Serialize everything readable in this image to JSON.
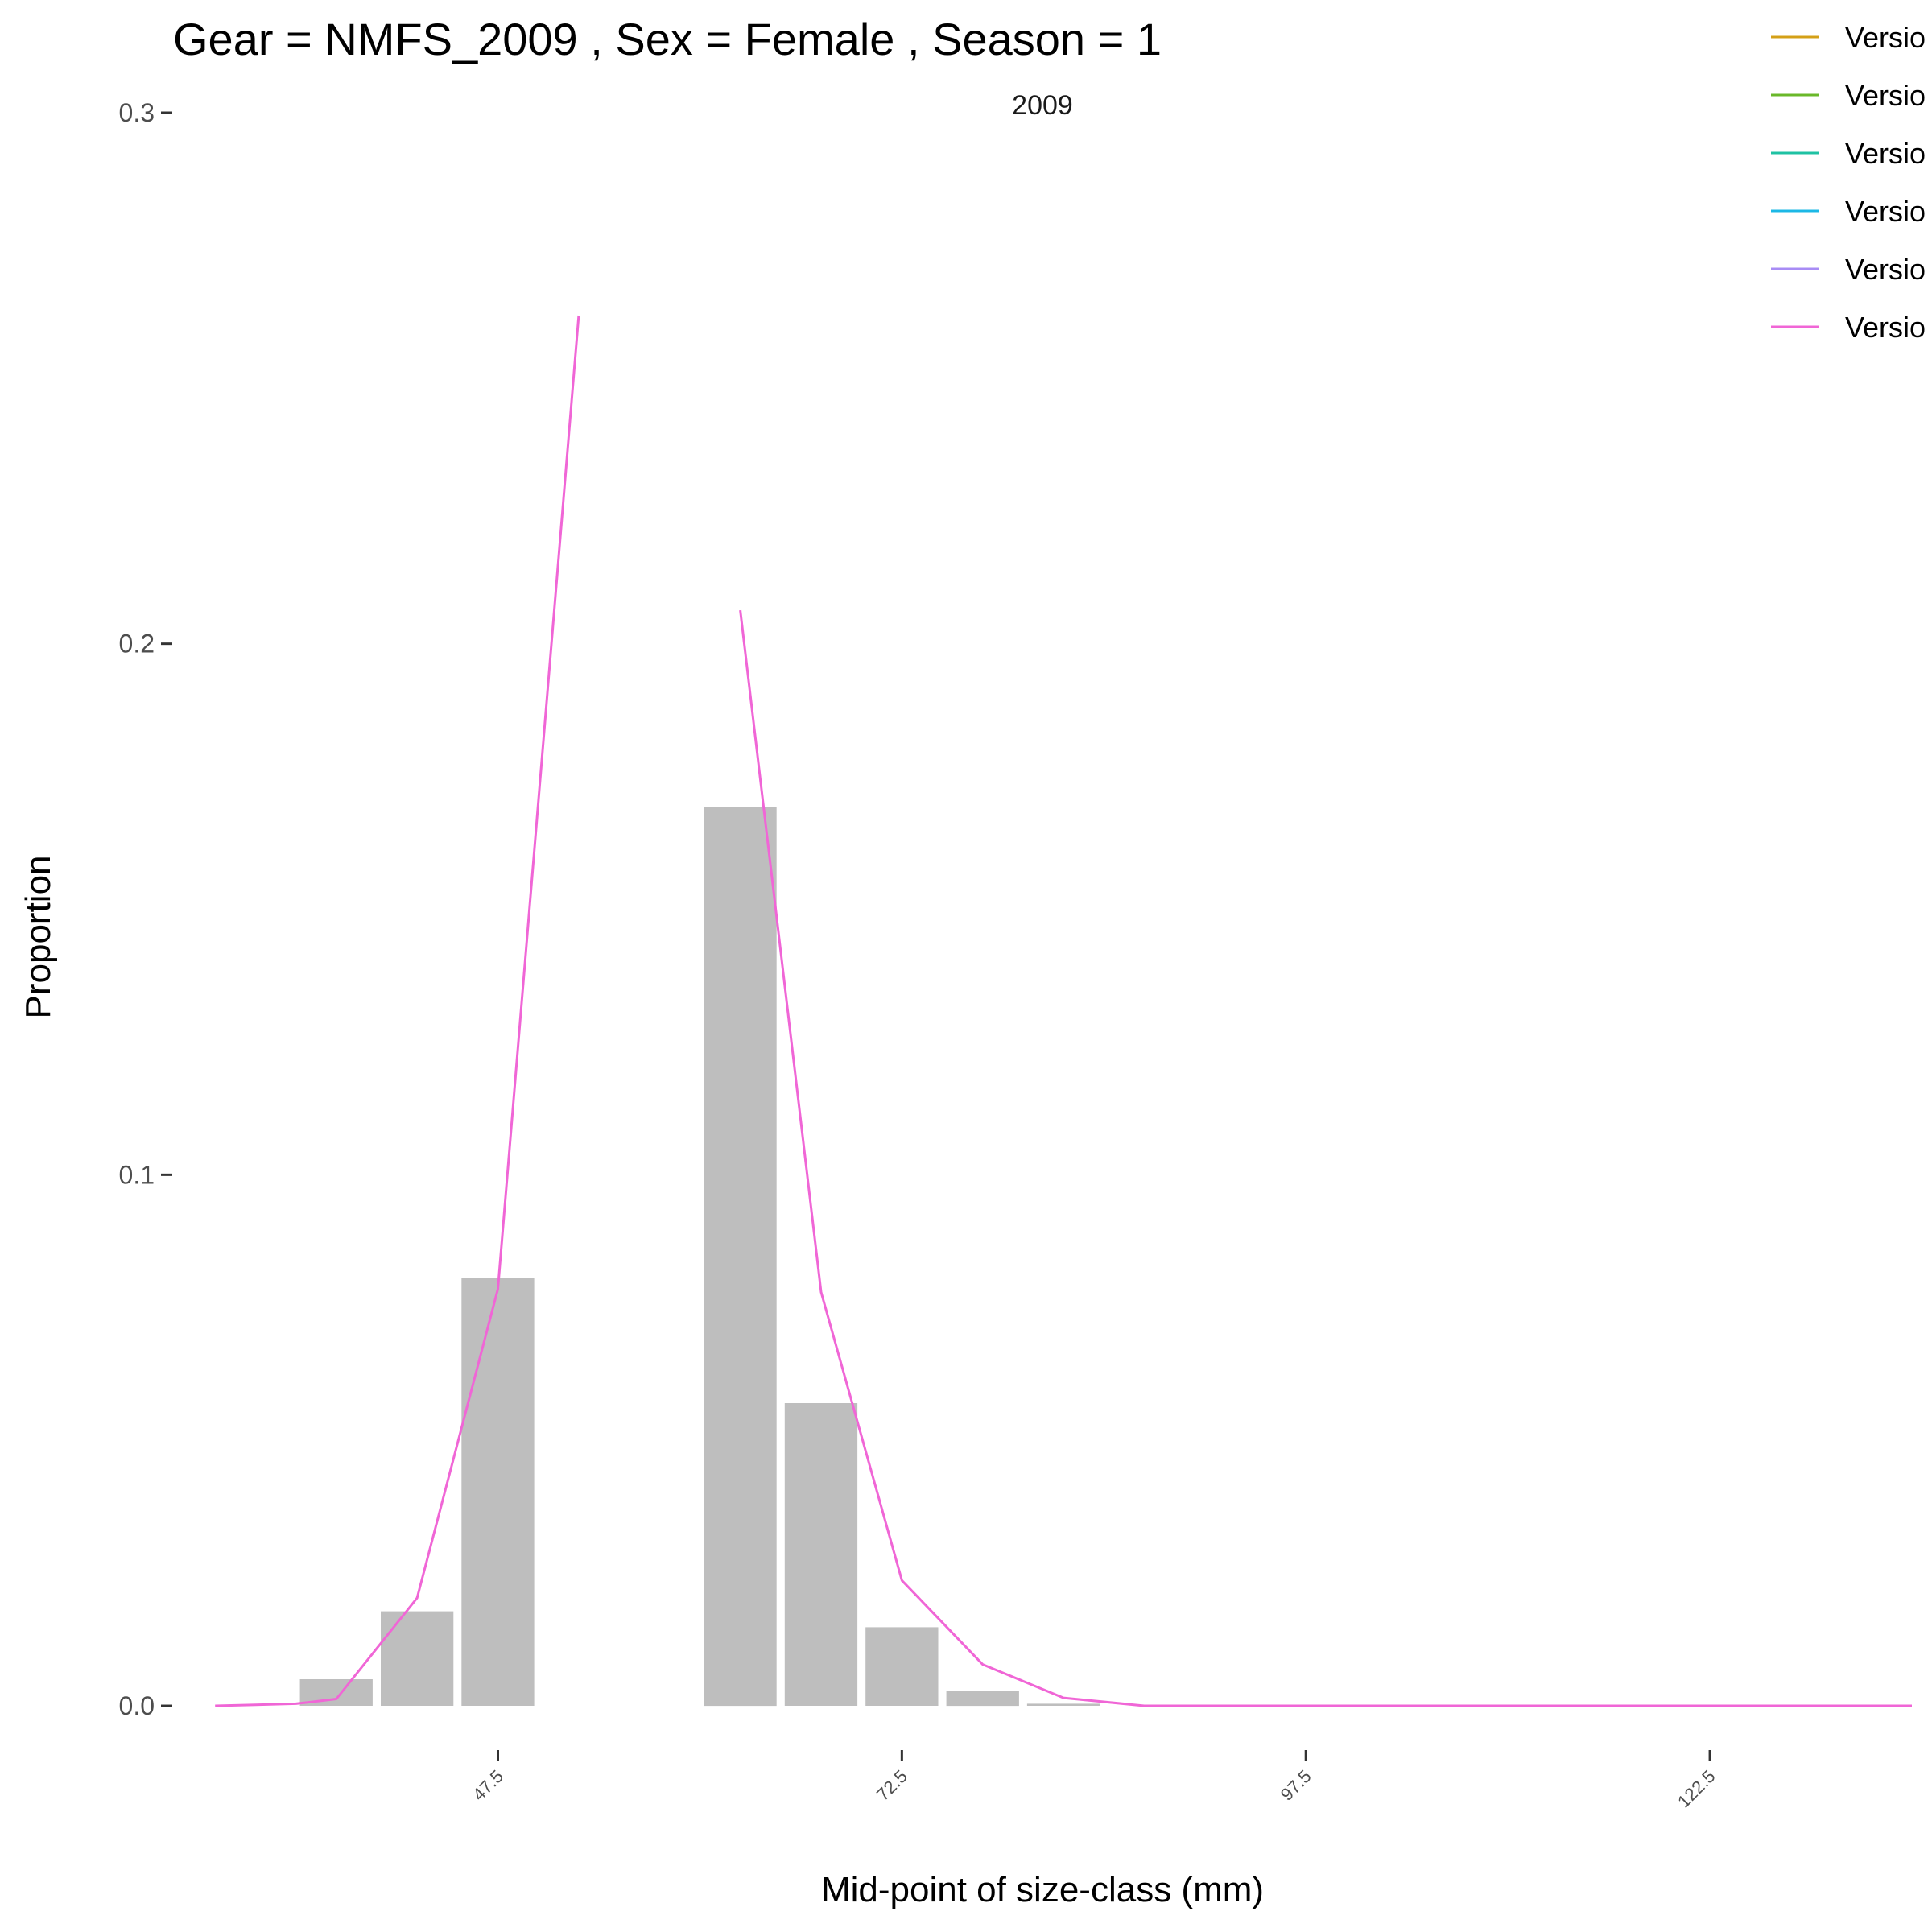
{
  "chart_data": {
    "type": "bar",
    "title": "Gear = NMFS_2009 , Sex = Female , Season = 1",
    "subtitle": "2009",
    "xlabel": "Mid-point of size-class (mm)",
    "ylabel": "Proportion",
    "xlim": [
      27.4,
      135.0
    ],
    "ylim": [
      -0.01,
      0.3
    ],
    "x_ticks": [
      47.5,
      72.5,
      97.5,
      122.5
    ],
    "x_tick_labels": [
      "47.5",
      "72.5",
      "97.5",
      "122.5"
    ],
    "y_ticks": [
      0.0,
      0.1,
      0.2,
      0.3
    ],
    "y_tick_labels": [
      "0.0",
      "0.1",
      "0.2",
      "0.3"
    ],
    "bar_width": 4.5,
    "bars": [
      {
        "x": 37.5,
        "value": 0.005
      },
      {
        "x": 42.5,
        "value": 0.0178
      },
      {
        "x": 47.5,
        "value": 0.0805
      },
      {
        "x": 62.5,
        "value": 0.1692
      },
      {
        "x": 67.5,
        "value": 0.057
      },
      {
        "x": 72.5,
        "value": 0.0148
      },
      {
        "x": 77.5,
        "value": 0.0028
      },
      {
        "x": 82.5,
        "value": 0.0004
      }
    ],
    "series": [
      {
        "name": "Version",
        "color": "#f066d6",
        "segments": [
          [
            [
              30,
              0.0
            ],
            [
              32.5,
              0.0002
            ],
            [
              35,
              0.0004
            ],
            [
              37.5,
              0.0013
            ],
            [
              42.5,
              0.0203
            ],
            [
              47.5,
              0.0785
            ],
            [
              52.5,
              0.2618
            ]
          ],
          [
            [
              62.5,
              0.2063
            ],
            [
              67.5,
              0.0779
            ],
            [
              72.5,
              0.0236
            ],
            [
              77.5,
              0.0078
            ],
            [
              82.5,
              0.0015
            ],
            [
              87.5,
              0.0
            ],
            [
              92.5,
              0.0
            ],
            [
              97.5,
              0.0
            ],
            [
              102.5,
              0.0
            ],
            [
              107.5,
              0.0
            ],
            [
              112.5,
              0.0
            ],
            [
              117.5,
              0.0
            ],
            [
              122.5,
              0.0
            ],
            [
              127.5,
              0.0
            ],
            [
              132.5,
              0.0
            ],
            [
              135.0,
              0.0
            ]
          ]
        ]
      }
    ],
    "legend": {
      "position": "top-right",
      "entries": [
        {
          "label": "Versio",
          "color": "#d4a017"
        },
        {
          "label": "Versio",
          "color": "#6ab82a"
        },
        {
          "label": "Versio",
          "color": "#1fc2a3"
        },
        {
          "label": "Versio",
          "color": "#1cb8e6"
        },
        {
          "label": "Versio",
          "color": "#a88cf5"
        },
        {
          "label": "Versio",
          "color": "#f066d6"
        }
      ]
    },
    "grid": false
  }
}
